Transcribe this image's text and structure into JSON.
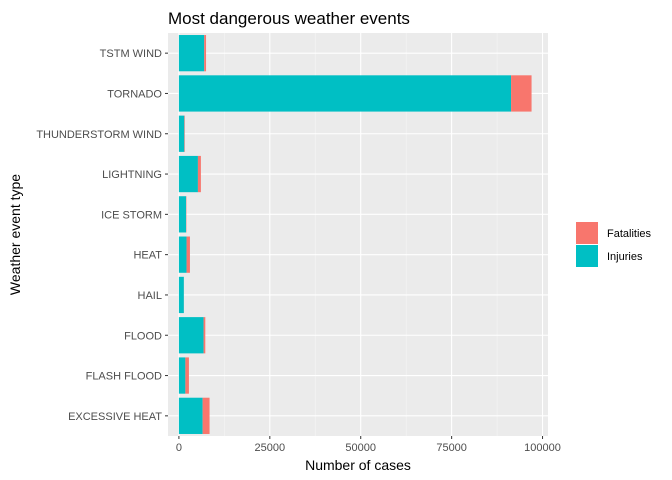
{
  "chart_data": {
    "type": "bar",
    "orientation": "horizontal",
    "stacked": true,
    "title": "Most dangerous weather events",
    "xlabel": "Number of cases",
    "ylabel": "Weather event type",
    "xlim": [
      -3000,
      101500
    ],
    "xticks": [
      0,
      25000,
      50000,
      75000,
      100000
    ],
    "xtick_labels": [
      "0",
      "25000",
      "50000",
      "75000",
      "100000"
    ],
    "categories": [
      "TSTM WIND",
      "TORNADO",
      "THUNDERSTORM WIND",
      "LIGHTNING",
      "ICE STORM",
      "HEAT",
      "HAIL",
      "FLOOD",
      "FLASH FLOOD",
      "EXCESSIVE HEAT"
    ],
    "series": [
      {
        "name": "Injuries",
        "color": "#00bfc4",
        "values": [
          6957,
          91346,
          1488,
          5230,
          1975,
          2100,
          1361,
          6789,
          1777,
          6525
        ]
      },
      {
        "name": "Fatalities",
        "color": "#f8766d",
        "values": [
          504,
          5633,
          133,
          816,
          89,
          937,
          15,
          470,
          978,
          1903
        ]
      }
    ],
    "legend": {
      "position": "right",
      "entries": [
        "Fatalities",
        "Injuries"
      ]
    },
    "grid": true,
    "background": "#ebebeb"
  }
}
